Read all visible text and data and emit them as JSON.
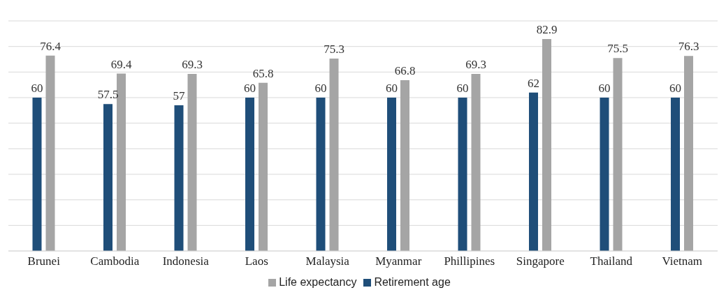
{
  "chart_data": {
    "type": "bar",
    "categories": [
      "Brunei",
      "Cambodia",
      "Indonesia",
      "Laos",
      "Malaysia",
      "Myanmar",
      "Phillipines",
      "Singapore",
      "Thailand",
      "Vietnam"
    ],
    "series": [
      {
        "name": "Retirement age",
        "color": "#1f4e79",
        "values": [
          60,
          57.5,
          57,
          60,
          60,
          60,
          60,
          62,
          60,
          60
        ]
      },
      {
        "name": "Life expectancy",
        "color": "#a5a5a5",
        "values": [
          76.4,
          69.4,
          69.3,
          65.8,
          75.3,
          66.8,
          69.3,
          82.9,
          75.5,
          76.3
        ]
      }
    ],
    "ylim": [
      0,
      90
    ],
    "yticks": [
      {
        "value": 0,
        "label": null
      },
      {
        "value": 10,
        "label": null
      },
      {
        "value": 20,
        "label": null
      },
      {
        "value": 30,
        "label": null
      },
      {
        "value": 40,
        "label": null
      },
      {
        "value": 50,
        "label": null
      },
      {
        "value": 60,
        "label": null
      },
      {
        "value": 70,
        "label": null
      },
      {
        "value": 80,
        "label": null
      },
      {
        "value": 90,
        "label": null
      }
    ],
    "tick_labels": "x",
    "grid": "y",
    "data_labels": true,
    "legend": "bottom"
  }
}
